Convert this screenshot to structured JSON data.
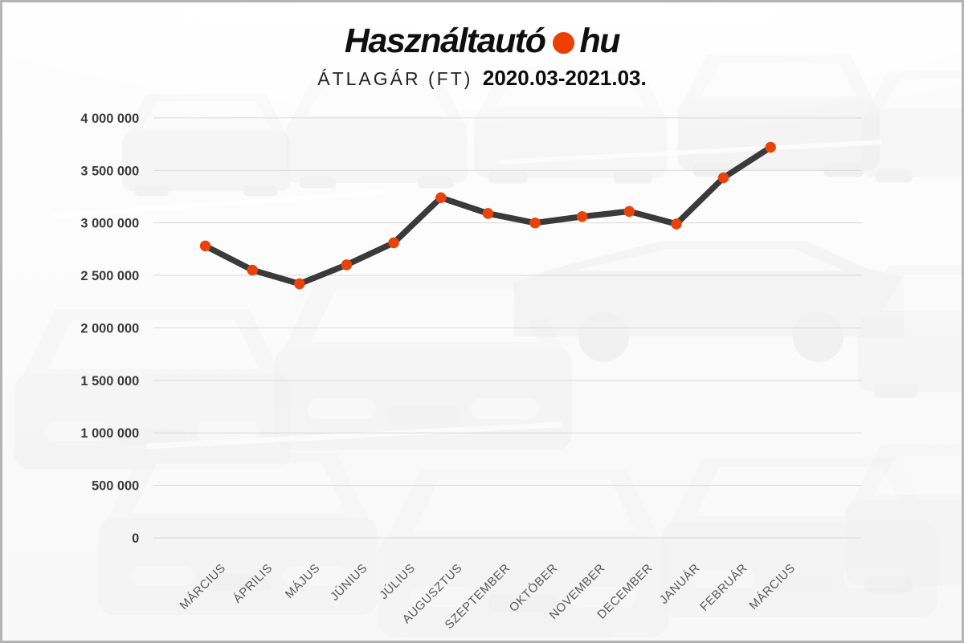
{
  "page": {
    "border_color": "#b4b4b4",
    "background_color": "#f7f7f7",
    "background_description": "faded black-and-white photo of rows of parked cars"
  },
  "header": {
    "logo": {
      "brand": "Használtautó",
      "tld": "hu",
      "dot_color": "#ee3e00",
      "text_color": "#0f0f0f"
    },
    "subtitle": {
      "label": "ÁTLAGÁR (FT)",
      "period": "2020.03-2021.03."
    }
  },
  "chart_data": {
    "type": "line",
    "title": "ÁTLAGÁR (FT) 2020.03-2021.03.",
    "xlabel": "",
    "ylabel": "",
    "categories": [
      "MÁRCIUS",
      "ÁPRILIS",
      "MÁJUS",
      "JÚNIUS",
      "JÚLIUS",
      "AUGUSZTUS",
      "SZEPTEMBER",
      "OKTÓBER",
      "NOVEMBER",
      "DECEMBER",
      "JANUÁR",
      "FEBRUÁR",
      "MÁRCIUS"
    ],
    "series": [
      {
        "name": "ÁTLAGÁR (FT)",
        "values": [
          2780000,
          2550000,
          2420000,
          2600000,
          2810000,
          3240000,
          3090000,
          3000000,
          3060000,
          3110000,
          2990000,
          3430000,
          3720000
        ]
      }
    ],
    "ylim": [
      0,
      4000000
    ],
    "ytick_step": 500000,
    "ytick_labels": [
      "0",
      "500 000",
      "1 000 000",
      "1 500 000",
      "2 000 000",
      "2 500 000",
      "3 000 000",
      "3 500 000",
      "4 000 000"
    ],
    "grid": "horizontal",
    "legend": "none",
    "line_color": "#3a3a3a",
    "line_width": 7.5,
    "marker_color": "#e8430b",
    "marker_radius": 6.8,
    "gridline_color": "#d9d9d9",
    "ytick_color": "#3b3b3b",
    "xtick_color": "#595959"
  }
}
